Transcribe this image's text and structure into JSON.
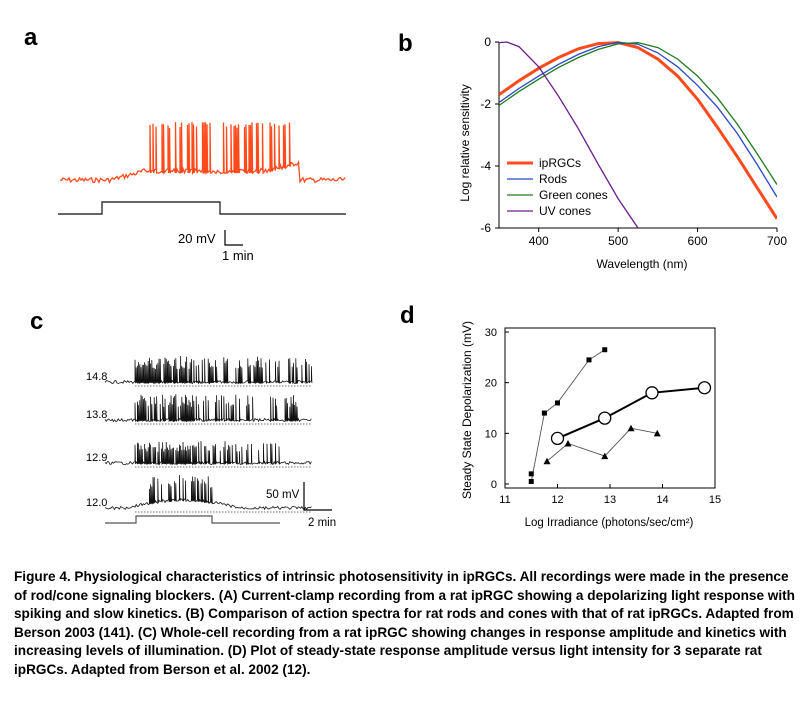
{
  "panels": {
    "a": {
      "letter": "a",
      "scale_bar": {
        "voltage_label": "20 mV",
        "time_label": "1 min"
      }
    },
    "b": {
      "letter": "b",
      "ylabel": "Log relative sensitivity",
      "xlabel": "Wavelength (nm)",
      "x_ticks": [
        "400",
        "500",
        "600",
        "700"
      ],
      "y_ticks": [
        "0",
        "-2",
        "-4",
        "-6"
      ],
      "legend": [
        "ipRGCs",
        "Rods",
        "Green cones",
        "UV cones"
      ]
    },
    "c": {
      "letter": "c",
      "trace_labels": [
        "14.8",
        "13.8",
        "12.9",
        "12.0"
      ],
      "scale_bar": {
        "voltage_label": "50 mV",
        "time_label": "2 min"
      }
    },
    "d": {
      "letter": "d",
      "ylabel": "Steady State Depolarization (mV)",
      "xlabel": "Log Irradiance (photons/sec/cm²)",
      "x_ticks": [
        "11",
        "12",
        "13",
        "14",
        "15"
      ],
      "y_ticks": [
        "0",
        "10",
        "20",
        "30"
      ]
    }
  },
  "chart_data": [
    {
      "type": "line",
      "panel": "b",
      "xlabel": "Wavelength (nm)",
      "ylabel": "Log relative sensitivity",
      "xlim": [
        350,
        700
      ],
      "ylim": [
        -6,
        0
      ],
      "legend_position": "bottom-left",
      "series": [
        {
          "name": "ipRGCs",
          "color": "#ff4a1c",
          "peak": 484,
          "x": [
            350,
            375,
            400,
            425,
            450,
            475,
            500,
            525,
            550,
            575,
            600,
            625,
            650,
            675,
            700
          ],
          "y": [
            -1.7,
            -1.25,
            -0.85,
            -0.5,
            -0.22,
            -0.05,
            -0.02,
            -0.18,
            -0.55,
            -1.1,
            -1.85,
            -2.75,
            -3.7,
            -4.7,
            -5.7
          ]
        },
        {
          "name": "Rods",
          "color": "#2b47c6",
          "peak": 498,
          "x": [
            350,
            375,
            400,
            425,
            450,
            475,
            500,
            525,
            550,
            575,
            600,
            625,
            650,
            675,
            700
          ],
          "y": [
            -1.95,
            -1.5,
            -1.1,
            -0.72,
            -0.4,
            -0.15,
            -0.01,
            -0.07,
            -0.35,
            -0.8,
            -1.4,
            -2.1,
            -2.95,
            -3.95,
            -5.0
          ]
        },
        {
          "name": "Green cones",
          "color": "#1f7a1f",
          "peak": 509,
          "x": [
            350,
            375,
            400,
            425,
            450,
            475,
            500,
            525,
            550,
            575,
            600,
            625,
            650,
            675,
            700
          ],
          "y": [
            -2.05,
            -1.6,
            -1.2,
            -0.82,
            -0.5,
            -0.24,
            -0.06,
            -0.02,
            -0.18,
            -0.55,
            -1.1,
            -1.8,
            -2.65,
            -3.6,
            -4.6
          ]
        },
        {
          "name": "UV cones",
          "color": "#6a1b8a",
          "peak": 360,
          "x": [
            350,
            360,
            375,
            400,
            425,
            450,
            475,
            500,
            525
          ],
          "y": [
            -0.02,
            0,
            -0.15,
            -0.8,
            -1.75,
            -2.8,
            -3.95,
            -5.05,
            -6.0
          ]
        }
      ]
    },
    {
      "type": "line",
      "panel": "d",
      "xlabel": "Log Irradiance (photons/sec/cm²)",
      "ylabel": "Steady State Depolarization (mV)",
      "xlim": [
        11,
        15
      ],
      "ylim": [
        0,
        30
      ],
      "series": [
        {
          "marker": "square",
          "x": [
            11.5,
            11.75,
            12.0,
            12.6,
            12.9
          ],
          "y": [
            0.5,
            14,
            16,
            24.5,
            26.5
          ]
        },
        {
          "marker": "square",
          "x": [
            11.5
          ],
          "y": [
            2
          ]
        },
        {
          "marker": "circle",
          "x": [
            12.0,
            12.9,
            13.8,
            14.8
          ],
          "y": [
            9,
            13,
            18,
            19
          ]
        },
        {
          "marker": "triangle",
          "x": [
            11.8,
            12.2,
            12.9,
            13.4,
            13.9
          ],
          "y": [
            4.5,
            8,
            5.5,
            11,
            10
          ]
        }
      ]
    }
  ],
  "caption": "Figure 4. Physiological characteristics of intrinsic photosensitivity in ipRGCs. All recordings were made in the presence of rod/cone signaling blockers. (A) Current-clamp recording from a rat ipRGC showing a depolarizing light response with spiking and slow kinetics. (B) Comparison of action spectra for rat rods and cones with that of rat ipRGCs. Adapted from Berson 2003 (141). (C) Whole-cell recording from a rat ipRGC showing changes in response amplitude and kinetics with increasing levels of illumination. (D) Plot of steady-state response amplitude versus light intensity for 3 separate rat ipRGCs. Adapted from Berson et al. 2002 (12)."
}
